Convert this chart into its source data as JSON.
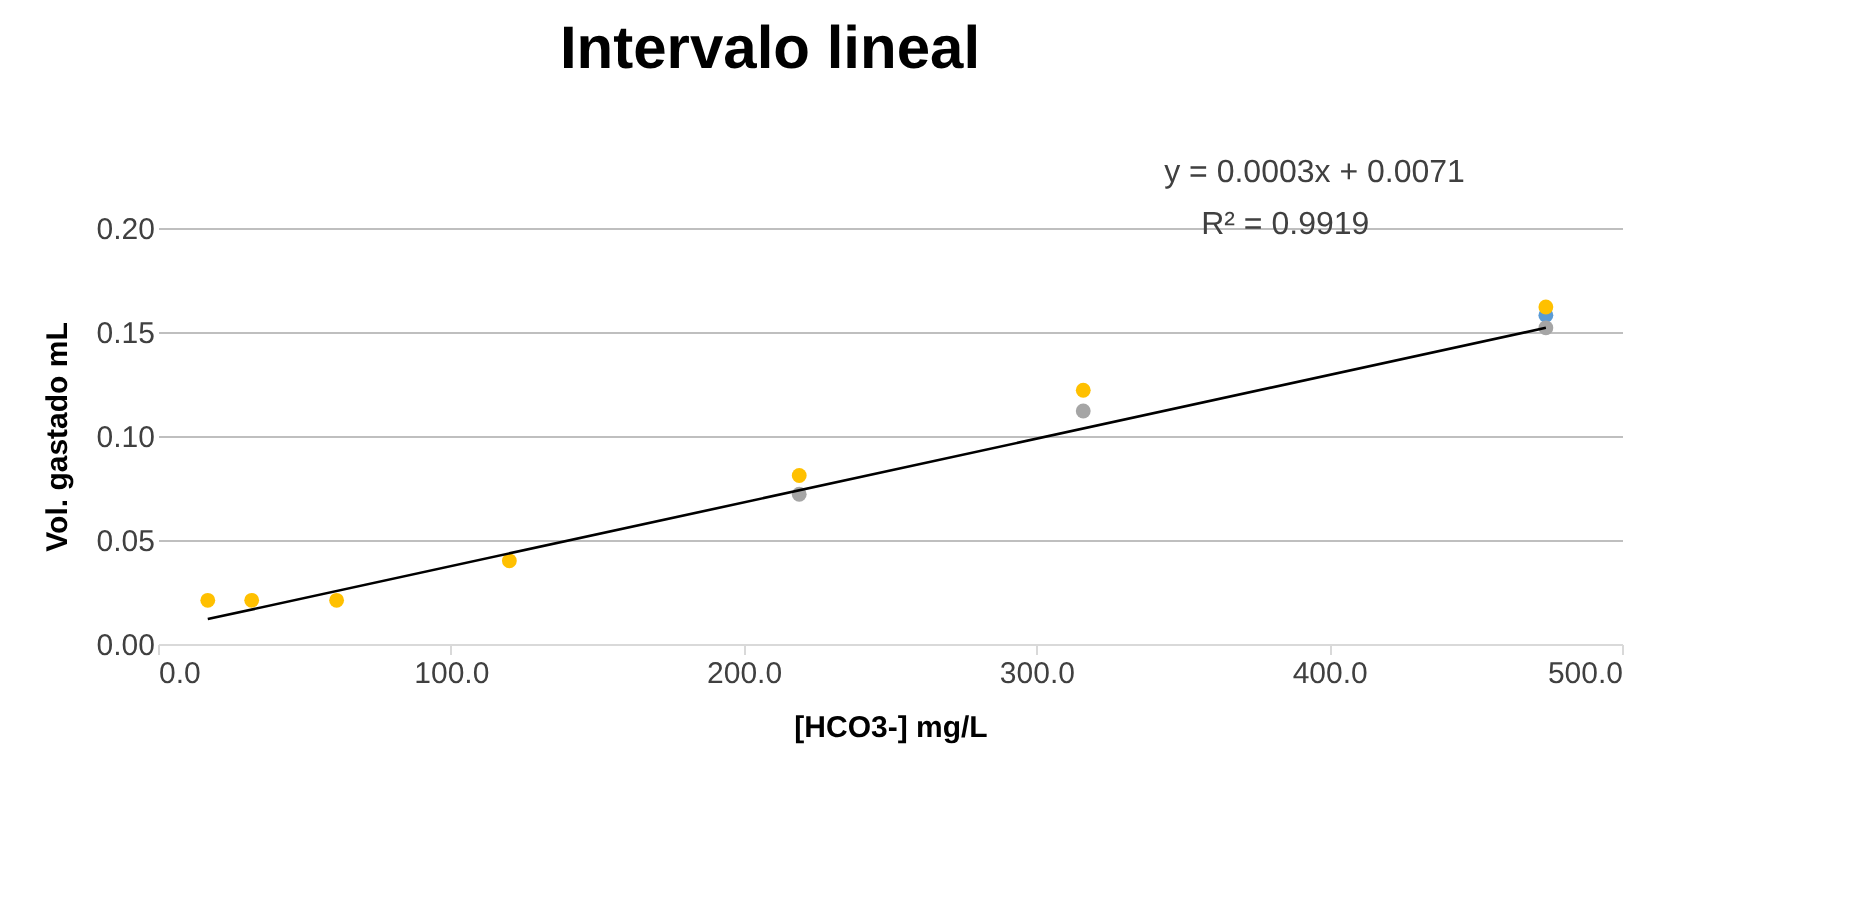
{
  "chart_data": {
    "type": "scatter",
    "title": "Intervalo lineal",
    "xlabel": "[HCO3-] mg/L",
    "ylabel": "Vol. gastado mL",
    "x": [
      17,
      32,
      61,
      120,
      219,
      316,
      474
    ],
    "series": [
      {
        "color": "#5b9bd5",
        "values": [
          null,
          null,
          null,
          null,
          null,
          null,
          0.158
        ]
      },
      {
        "color": "#a5a5a5",
        "values": [
          null,
          null,
          null,
          null,
          0.072,
          0.112,
          0.152
        ]
      },
      {
        "color": "#ffc000",
        "values": [
          0.021,
          0.021,
          0.021,
          0.04,
          0.081,
          0.122,
          0.162
        ]
      },
      {
        "type": "line",
        "color": "#000000",
        "marker": "none",
        "x": [
          17,
          474
        ],
        "values": [
          0.012,
          0.152
        ]
      }
    ],
    "xlim": [
      0,
      500
    ],
    "xticks": [
      {
        "value": 0,
        "label": "0.0"
      },
      {
        "value": 100,
        "label": "100.0"
      },
      {
        "value": 200,
        "label": "200.0"
      },
      {
        "value": 300,
        "label": "300.0"
      },
      {
        "value": 400,
        "label": "400.0"
      },
      {
        "value": 500,
        "label": "500.0"
      }
    ],
    "ylim": [
      0,
      0.2
    ],
    "yticks": [
      {
        "value": 0,
        "label": "0.00"
      },
      {
        "value": 0.05,
        "label": "0.05"
      },
      {
        "value": 0.1,
        "label": "0.10"
      },
      {
        "value": 0.15,
        "label": "0.15"
      },
      {
        "value": 0.2,
        "label": "0.20"
      }
    ],
    "grid": "y",
    "marker": "circle",
    "annotations": [
      "y = 0.0003x + 0.0071",
      "R² = 0.9919"
    ]
  }
}
